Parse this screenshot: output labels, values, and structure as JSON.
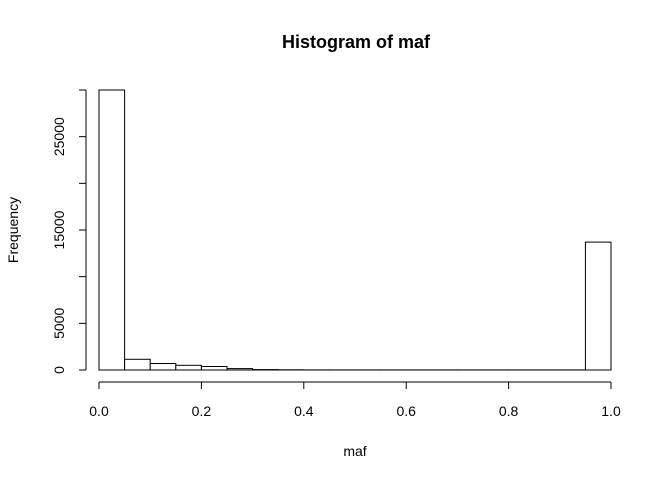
{
  "chart_data": {
    "type": "bar",
    "title": "Histogram of maf",
    "xlabel": "maf",
    "ylabel": "Frequency",
    "xlim": [
      0,
      1
    ],
    "ylim": [
      0,
      30000
    ],
    "x_ticks": [
      0,
      0.2,
      0.4,
      0.6,
      0.8,
      1.0
    ],
    "x_tick_labels": [
      "0.0",
      "0.2",
      "0.4",
      "0.6",
      "0.8",
      "1.0"
    ],
    "y_ticks": [
      0,
      5000,
      15000,
      25000
    ],
    "y_tick_labels": [
      "0",
      "5000",
      "15000",
      "25000"
    ],
    "bin_edges": [
      0,
      0.05,
      0.1,
      0.15,
      0.2,
      0.25,
      0.3,
      0.35,
      0.4,
      0.45,
      0.5,
      0.55,
      0.6,
      0.65,
      0.7,
      0.75,
      0.8,
      0.85,
      0.9,
      0.95,
      1.0
    ],
    "values": [
      30000,
      1150,
      700,
      500,
      380,
      150,
      40,
      20,
      15,
      10,
      10,
      8,
      8,
      8,
      8,
      8,
      8,
      8,
      8,
      13700
    ],
    "grid": false,
    "legend": "none"
  }
}
